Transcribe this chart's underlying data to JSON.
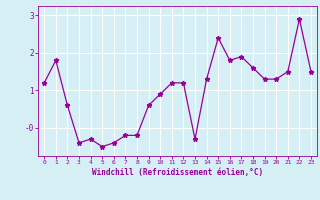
{
  "x": [
    0,
    1,
    2,
    3,
    4,
    5,
    6,
    7,
    8,
    9,
    10,
    11,
    12,
    13,
    14,
    15,
    16,
    17,
    18,
    19,
    20,
    21,
    22,
    23
  ],
  "y": [
    1.2,
    1.8,
    0.6,
    -0.4,
    -0.3,
    -0.5,
    -0.4,
    -0.2,
    -0.2,
    0.6,
    0.9,
    1.2,
    1.2,
    -0.3,
    1.3,
    2.4,
    1.8,
    1.9,
    1.6,
    1.3,
    1.3,
    1.5,
    2.9,
    1.5
  ],
  "line_color": "#990099",
  "marker": "*",
  "xlabel": "Windchill (Refroidissement éolien,°C)",
  "ylabel": "",
  "xlim": [
    -0.5,
    23.5
  ],
  "ylim": [
    -0.75,
    3.25
  ],
  "ytick_vals": [
    0,
    1,
    2,
    3
  ],
  "ytick_labels": [
    "-0",
    "1",
    "2",
    "3"
  ],
  "xtick_labels": [
    "0",
    "1",
    "2",
    "3",
    "4",
    "5",
    "6",
    "7",
    "8",
    "9",
    "10",
    "11",
    "12",
    "13",
    "14",
    "15",
    "16",
    "17",
    "18",
    "19",
    "20",
    "21",
    "22",
    "23"
  ],
  "bg_color": "#d6eff5",
  "grid_color": "#ffffff",
  "line_grid_color": "#c0dde5",
  "tick_color": "#990099",
  "label_color": "#990099",
  "figsize": [
    3.2,
    2.0
  ],
  "dpi": 100
}
